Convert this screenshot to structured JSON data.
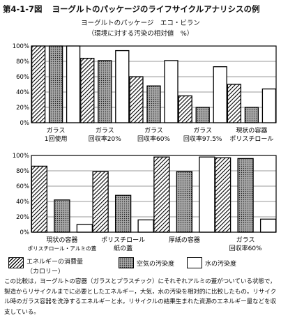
{
  "figure": {
    "number": "第4-1-7図",
    "title": "ヨーグルトのパッケージのライフサイクルアナリシスの例",
    "subtitle": "ヨーグルトのパッケージ　エコ・ビラン",
    "subtitle2": "（環境に対する汚染の相対値　%）"
  },
  "legend": {
    "energy_line1": "エネルギーの消費量",
    "energy_line2": "（カロリー）",
    "air": "空気の汚染度",
    "water": "水の汚染度"
  },
  "caption": "この比較は，ヨーグルトの容器（ガラスとプラスチック）にそれぞれアルミの蓋がついている状態で，製造からリサイクルまでに必要としたエネルギー，大気，水の汚染を相対的に比較したもの。リサイクル時のガラス容器を洗浄するエネルギーと水，リサイクルの結果生まれた資源のエネルギー量などを収支している。",
  "chart_data": [
    {
      "type": "bar",
      "ylim": [
        0,
        100
      ],
      "yticks": [
        "0%",
        "20%",
        "40%",
        "60%",
        "80%",
        "100%"
      ],
      "categories": [
        [
          "ガラス",
          "1回使用"
        ],
        [
          "ガラス",
          "回収率20%"
        ],
        [
          "ガラス",
          "回収率60%"
        ],
        [
          "ガラス",
          "回収率97.5%"
        ],
        [
          "現状の容器",
          "ポリスチロール"
        ]
      ],
      "series": [
        {
          "name": "エネルギーの消費量（カロリー）",
          "values": [
            100,
            84,
            60,
            35,
            50
          ]
        },
        {
          "name": "空気の汚染度",
          "values": [
            100,
            81,
            48,
            20,
            20
          ]
        },
        {
          "name": "水の汚染度",
          "values": [
            100,
            94,
            81,
            73,
            44
          ]
        }
      ]
    },
    {
      "type": "bar",
      "ylim": [
        0,
        100
      ],
      "yticks": [
        "0%",
        "20%",
        "40%",
        "60%",
        "80%",
        "100%"
      ],
      "categories": [
        [
          "現状の容器",
          "ポリスチロール・アルミの蓋"
        ],
        [
          "ポリスチロール",
          "紙の蓋"
        ],
        [
          "厚紙の容器",
          ""
        ],
        [
          "ガラス",
          "回収率60%"
        ]
      ],
      "series": [
        {
          "name": "エネルギーの消費量（カロリー）",
          "values": [
            86,
            79,
            98,
            97
          ]
        },
        {
          "name": "空気の汚染度",
          "values": [
            42,
            48,
            79,
            96
          ]
        },
        {
          "name": "水の汚染度",
          "values": [
            10,
            16,
            98,
            17
          ]
        }
      ]
    }
  ]
}
